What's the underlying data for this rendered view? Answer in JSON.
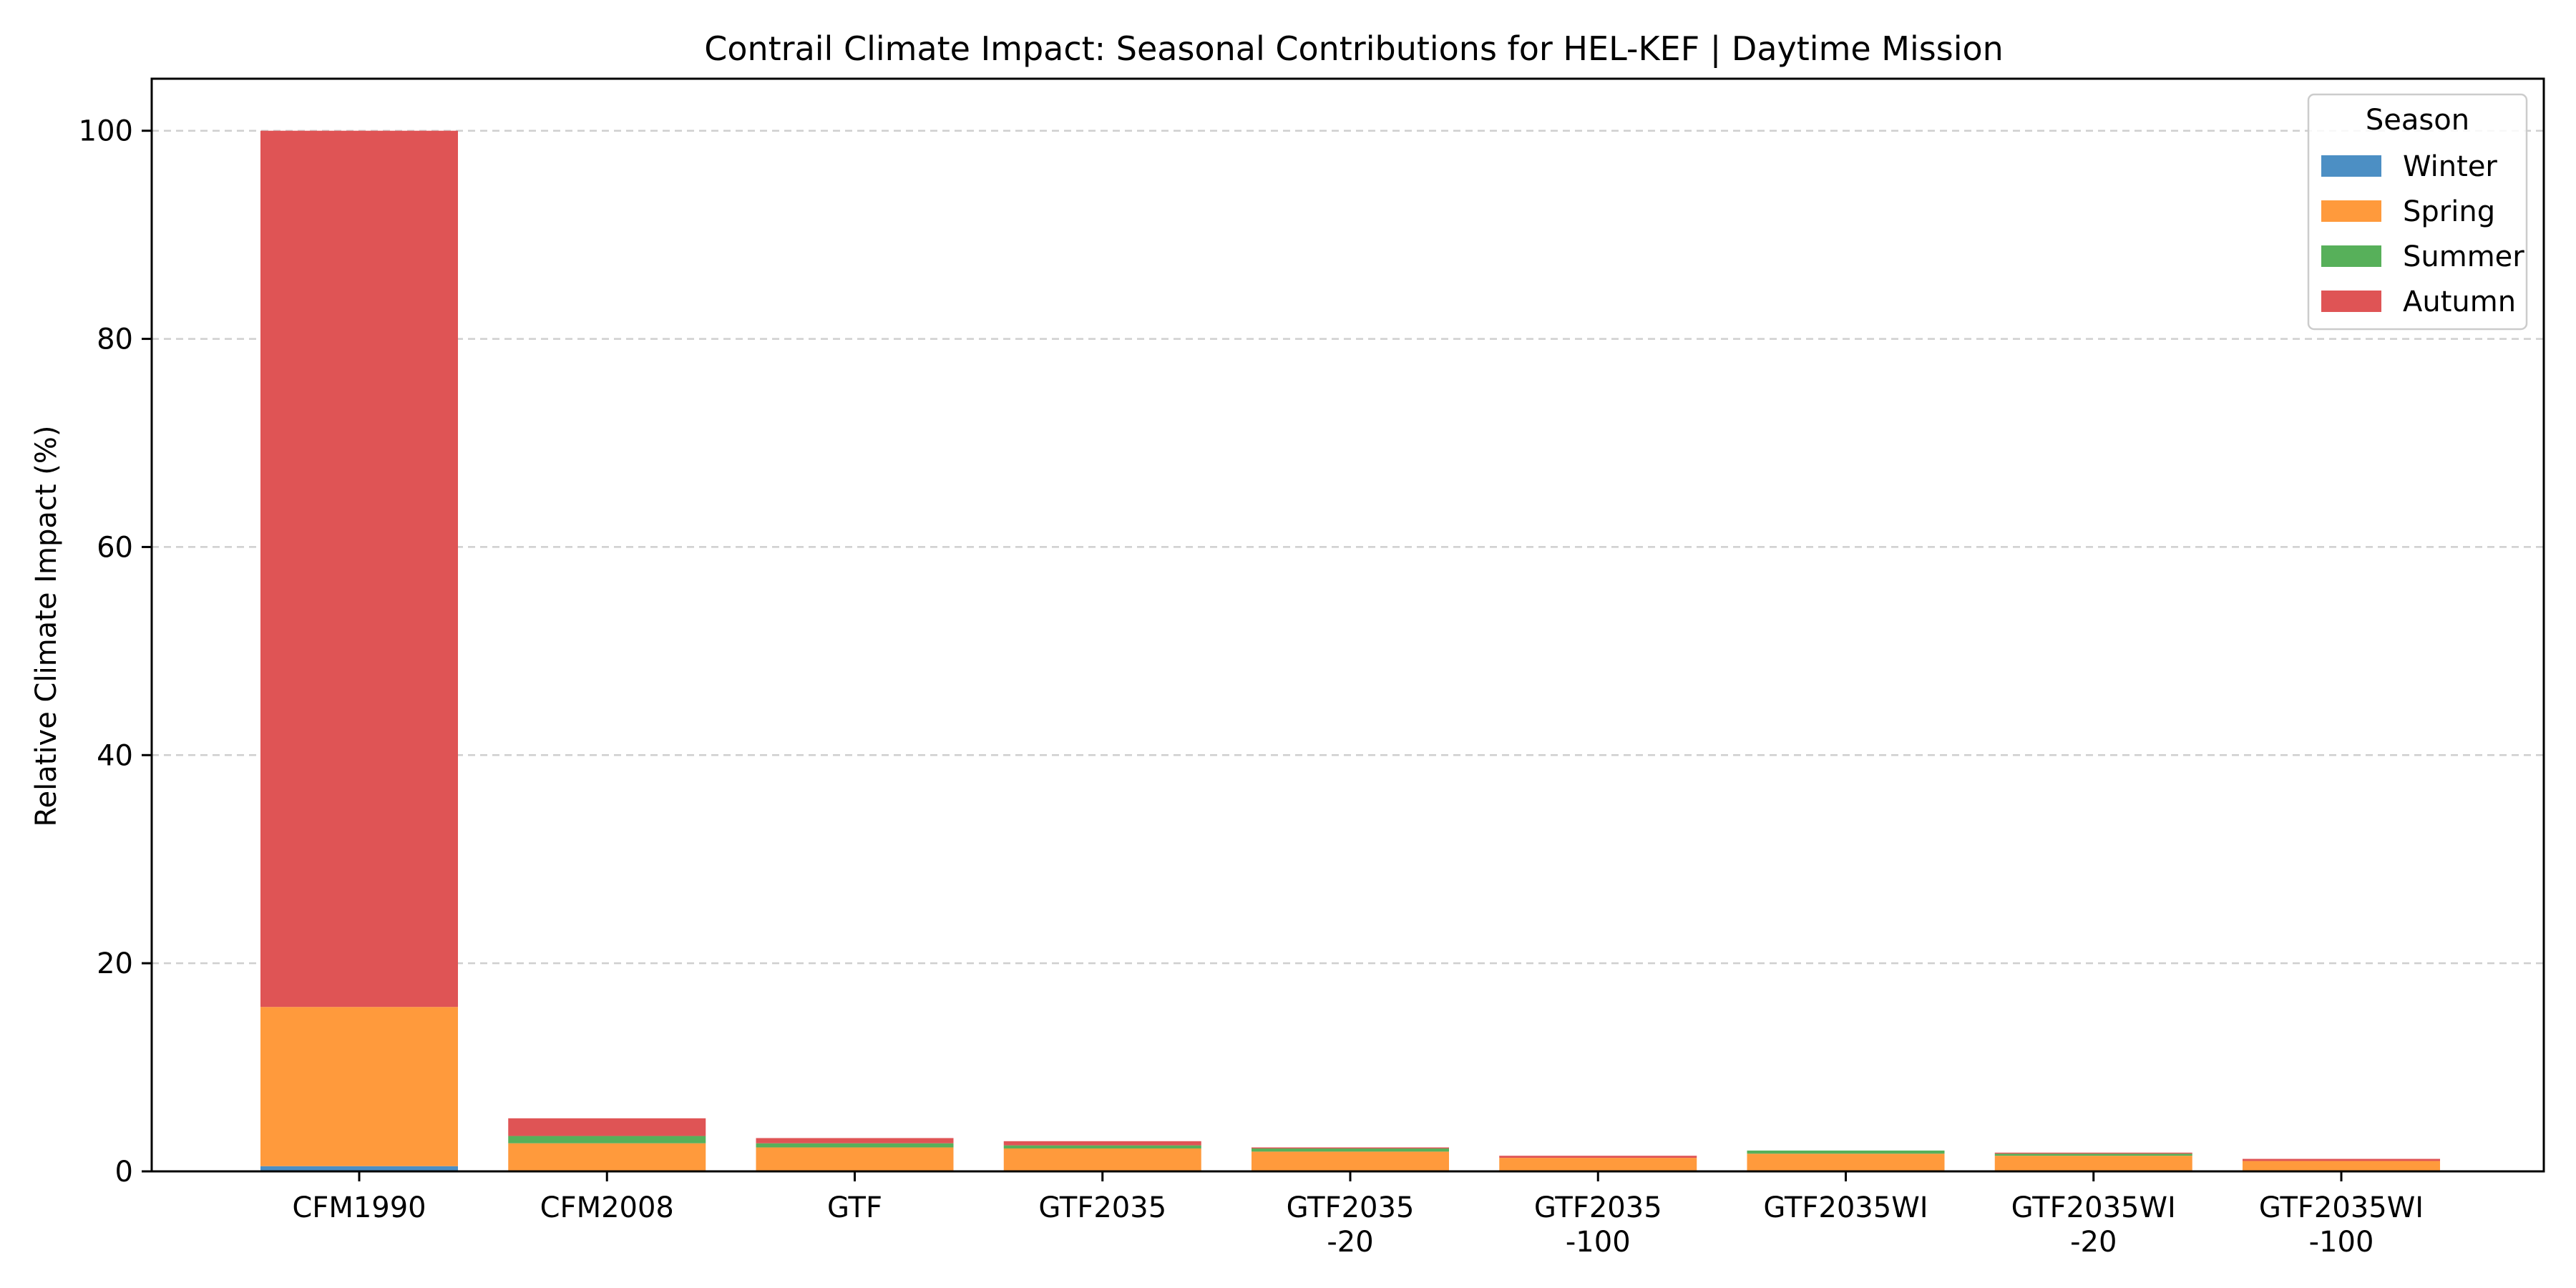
{
  "chart_data": {
    "type": "bar",
    "stacked": true,
    "title": "Contrail Climate Impact: Seasonal Contributions for HEL-KEF | Daytime Mission",
    "xlabel": "",
    "ylabel": "Relative Climate Impact (%)",
    "ylim": [
      0,
      105
    ],
    "yticks": [
      0,
      20,
      40,
      60,
      80,
      100
    ],
    "grid": "y-dashed",
    "categories": [
      [
        "CFM1990"
      ],
      [
        "CFM2008"
      ],
      [
        "GTF"
      ],
      [
        "GTF2035"
      ],
      [
        "GTF2035",
        "-20"
      ],
      [
        "GTF2035",
        "-100"
      ],
      [
        "GTF2035WI"
      ],
      [
        "GTF2035WI",
        "-20"
      ],
      [
        "GTF2035WI",
        "-100"
      ]
    ],
    "series": [
      {
        "name": "Winter",
        "color": "#4c8fc4",
        "values": [
          0.5,
          0.0,
          0.0,
          0.0,
          0.0,
          0.0,
          0.0,
          0.0,
          0.0
        ]
      },
      {
        "name": "Spring",
        "color": "#ff9a3c",
        "values": [
          15.3,
          2.7,
          2.3,
          2.2,
          1.9,
          1.3,
          1.7,
          1.5,
          1.0
        ]
      },
      {
        "name": "Summer",
        "color": "#57b05a",
        "values": [
          0.0,
          0.7,
          0.4,
          0.3,
          0.3,
          0.0,
          0.3,
          0.2,
          0.0
        ]
      },
      {
        "name": "Autumn",
        "color": "#df5455",
        "values": [
          84.2,
          1.7,
          0.5,
          0.4,
          0.1,
          0.2,
          0.0,
          0.1,
          0.2
        ]
      }
    ],
    "legend": {
      "title": "Season",
      "position": "top-right"
    }
  }
}
